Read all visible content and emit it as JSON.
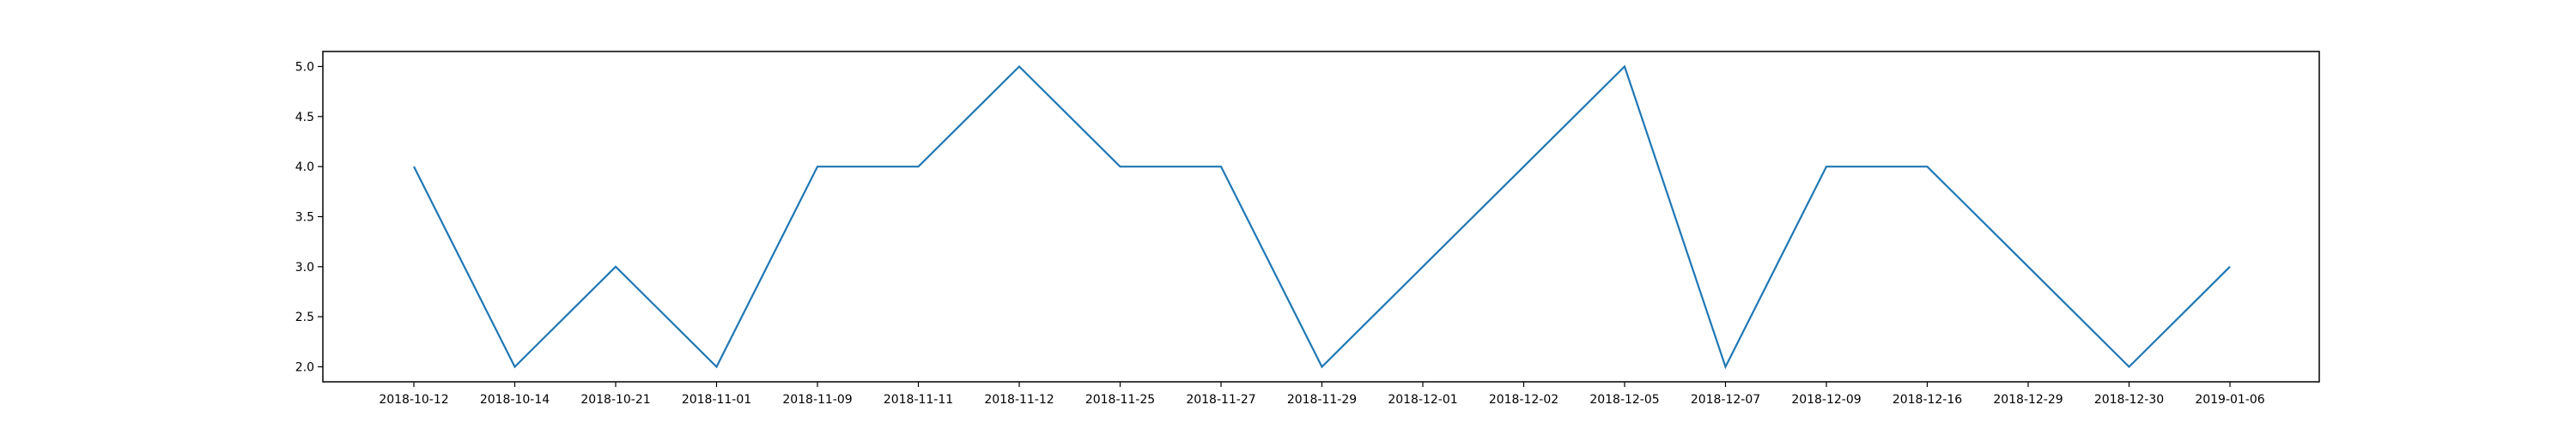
{
  "chart_data": {
    "type": "line",
    "title": "",
    "xlabel": "",
    "ylabel": "",
    "categories": [
      "2018-10-12",
      "2018-10-14",
      "2018-10-21",
      "2018-11-01",
      "2018-11-09",
      "2018-11-11",
      "2018-11-12",
      "2018-11-25",
      "2018-11-27",
      "2018-11-29",
      "2018-12-01",
      "2018-12-02",
      "2018-12-05",
      "2018-12-07",
      "2018-12-09",
      "2018-12-16",
      "2018-12-29",
      "2018-12-30",
      "2019-01-06"
    ],
    "series": [
      {
        "color": "#1f77b4",
        "values": [
          4,
          2,
          3,
          2,
          4,
          4,
          5,
          4,
          4,
          2,
          3,
          4,
          5,
          2,
          4,
          4,
          3,
          2,
          3
        ]
      }
    ],
    "ylim": [
      1.85,
      5.15
    ],
    "yticks": [
      2.0,
      2.5,
      3.0,
      3.5,
      4.0,
      4.5,
      5.0
    ],
    "ytick_labels": [
      "2.0",
      "2.5",
      "3.0",
      "3.5",
      "4.0",
      "4.5",
      "5.0"
    ],
    "grid": false,
    "legend": "none"
  }
}
